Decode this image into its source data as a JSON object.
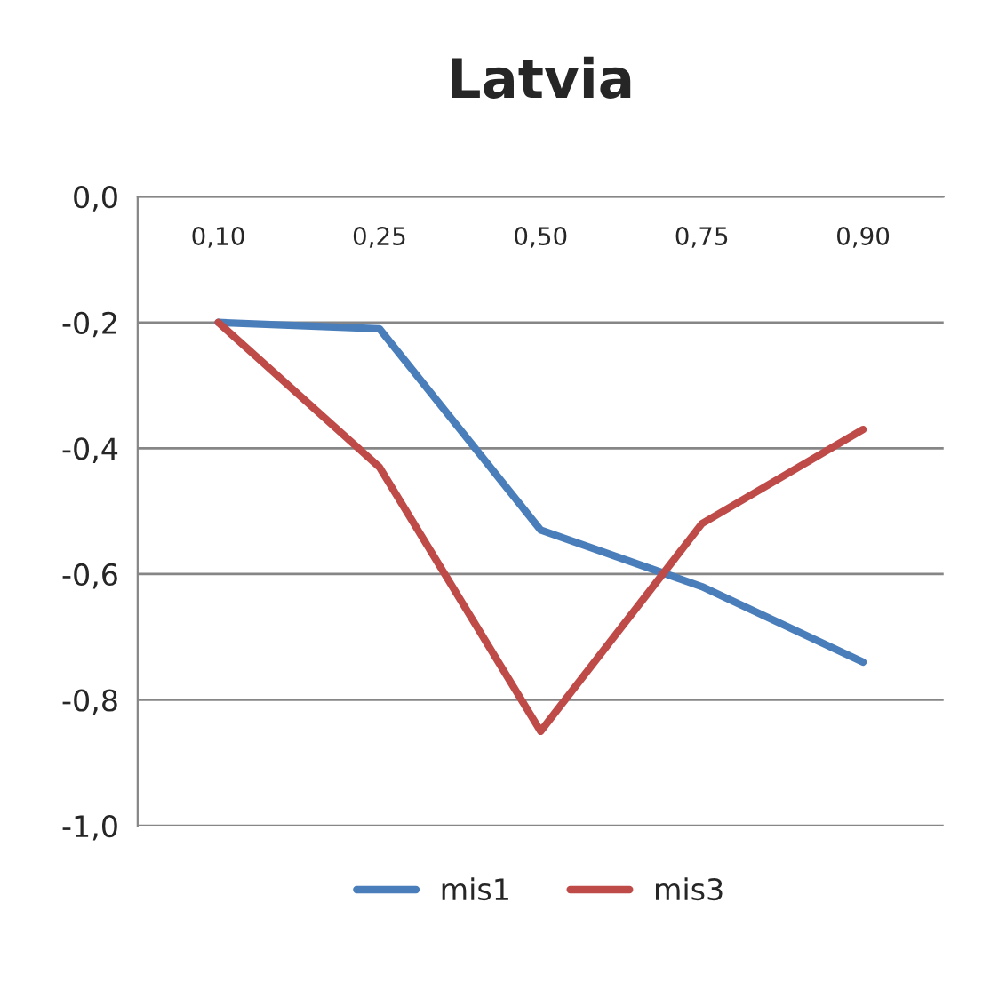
{
  "chart_data": {
    "type": "line",
    "title": "Latvia",
    "categories": [
      "0,10",
      "0,25",
      "0,50",
      "0,75",
      "0,90"
    ],
    "series": [
      {
        "name": "mis1",
        "color": "#4a7ebb",
        "values": [
          -0.2,
          -0.21,
          -0.53,
          -0.62,
          -0.74
        ]
      },
      {
        "name": "mis3",
        "color": "#be4b48",
        "values": [
          -0.2,
          -0.43,
          -0.85,
          -0.52,
          -0.37
        ]
      }
    ],
    "ylim": [
      -1.0,
      0.0
    ],
    "yticks": [
      {
        "value": -1.0,
        "label": "-1,0"
      },
      {
        "value": -0.8,
        "label": "-0,8"
      },
      {
        "value": -0.6,
        "label": "-0,6"
      },
      {
        "value": -0.4,
        "label": "-0,4"
      },
      {
        "value": -0.2,
        "label": "-0,2"
      },
      {
        "value": 0.0,
        "label": "0,0"
      }
    ],
    "grid": "y",
    "legend": "bottom",
    "marker": "none",
    "line_style": "solid"
  }
}
